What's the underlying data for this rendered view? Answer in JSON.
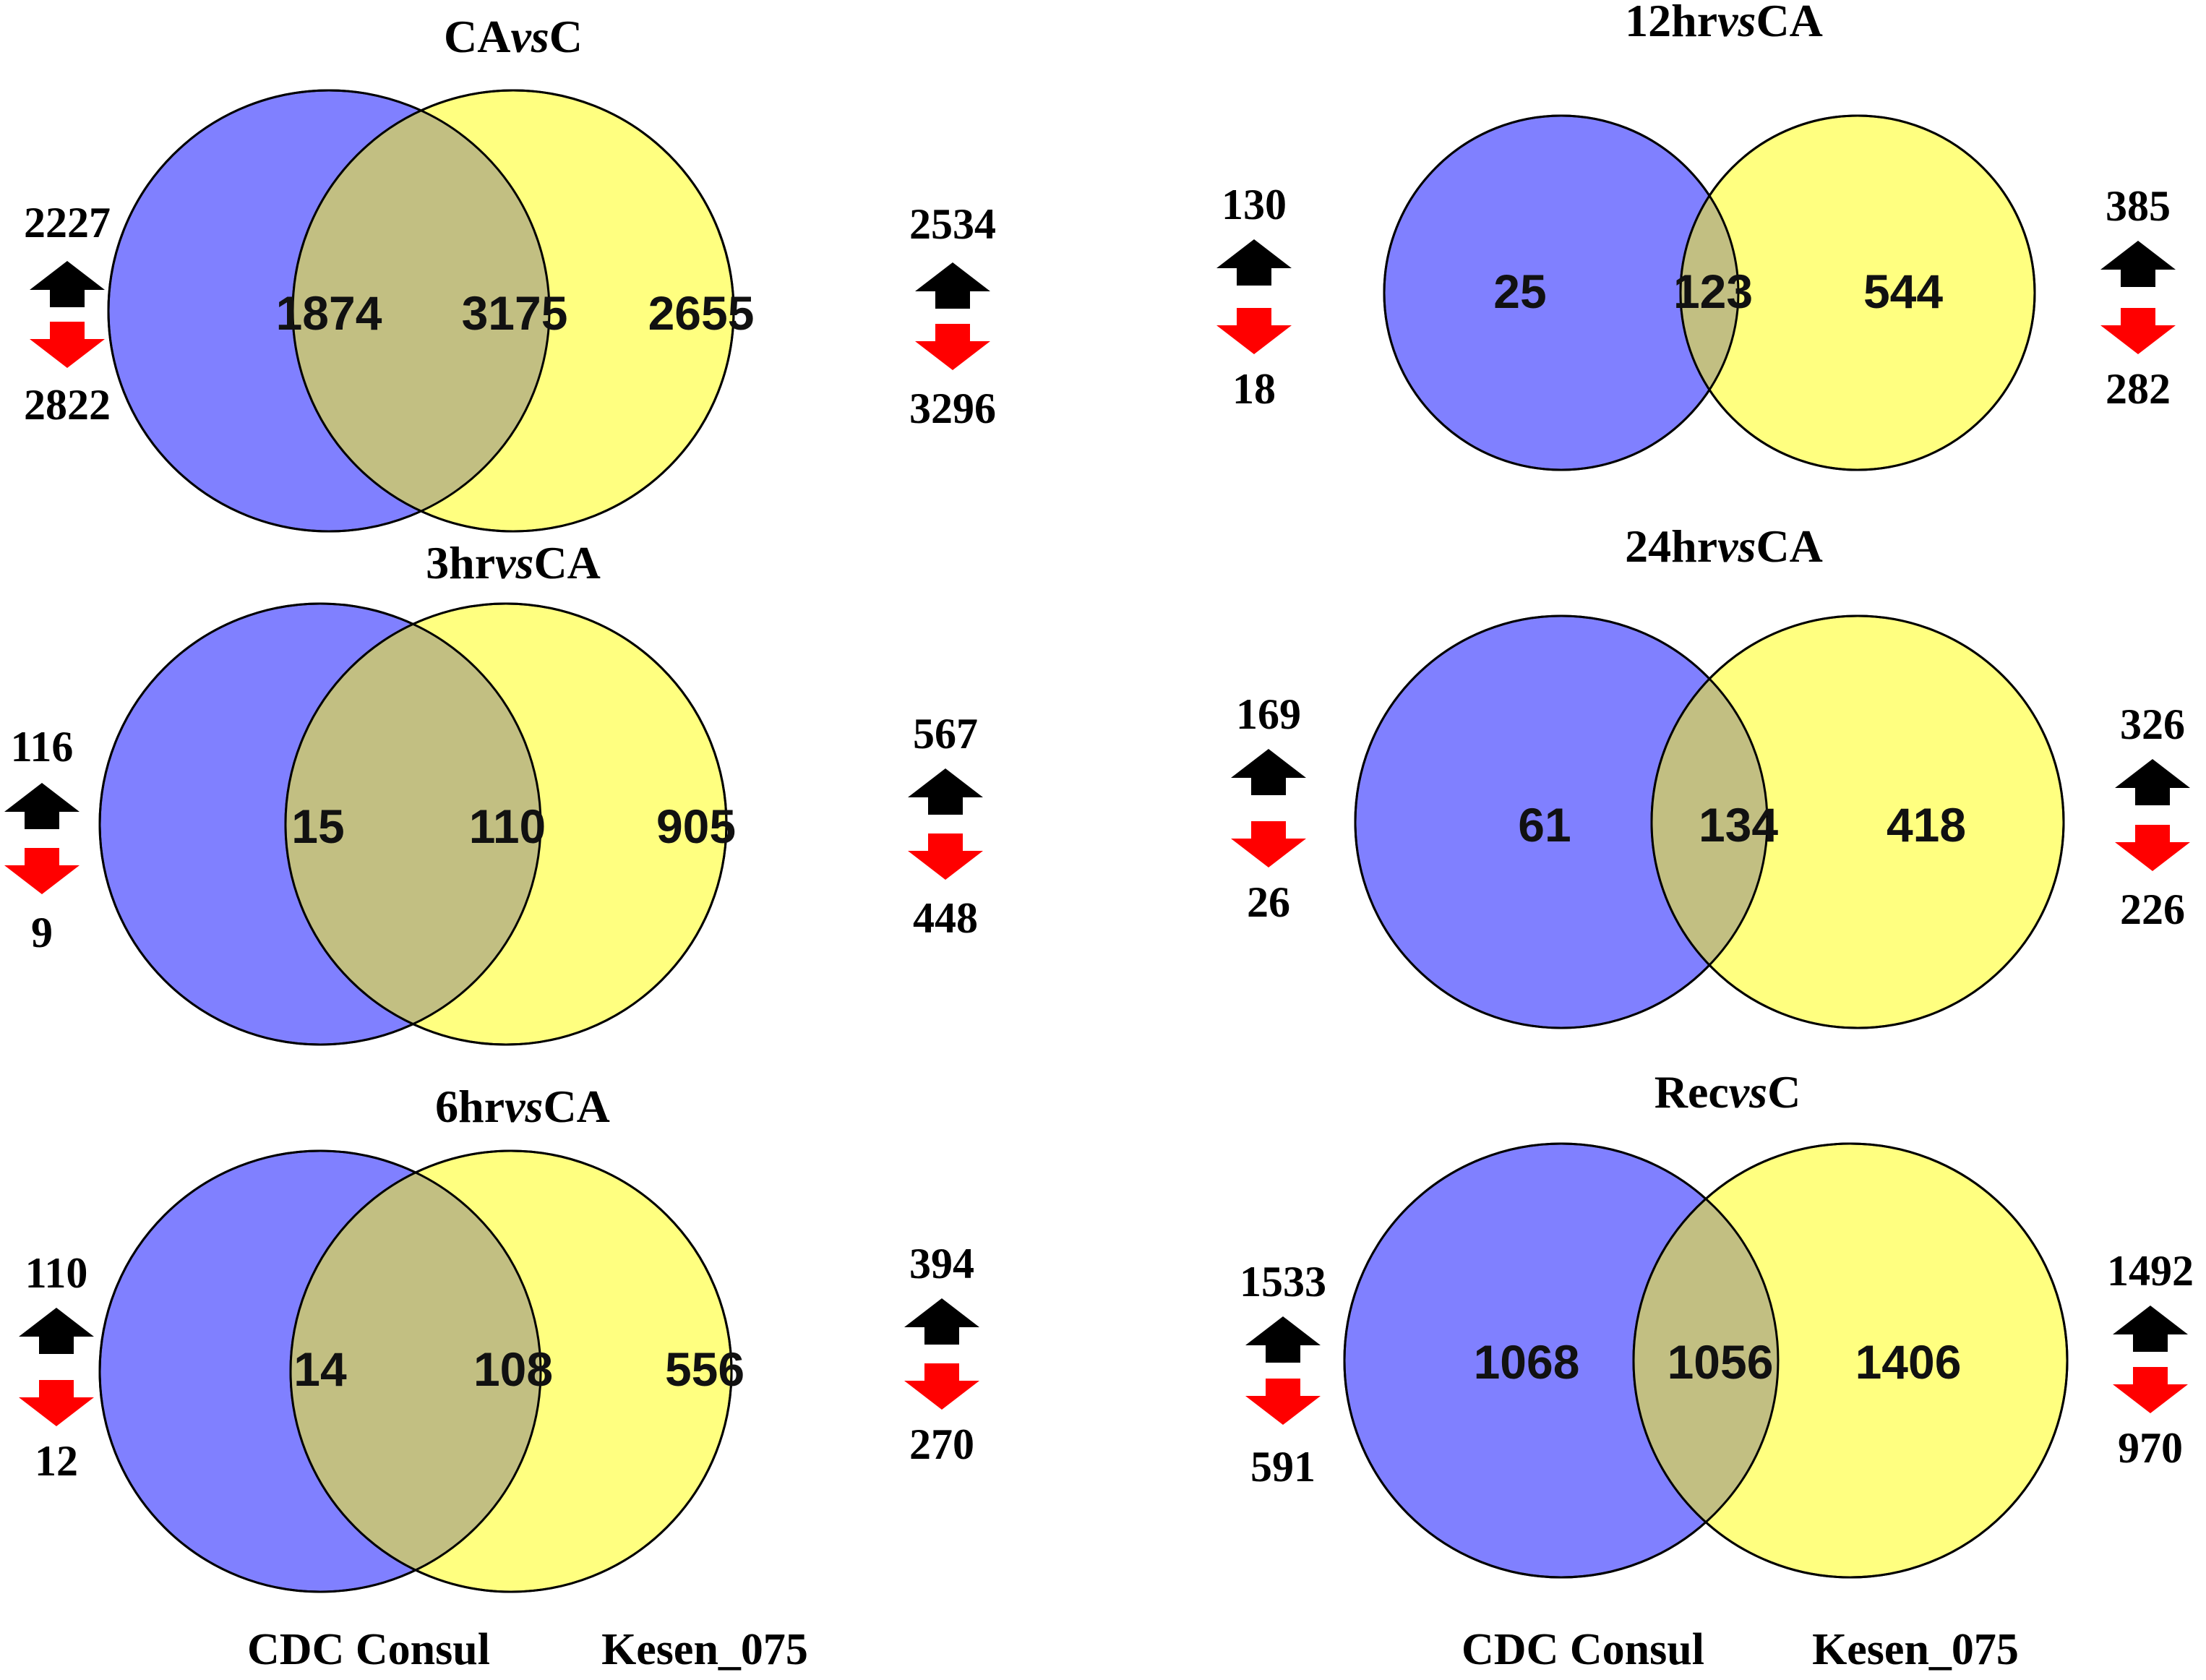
{
  "colors": {
    "set_a": "#8080ff",
    "set_b": "#ffff80",
    "overlap": "#c2bf82",
    "arrow_up": "#000000",
    "arrow_down": "#ff0000"
  },
  "legend": {
    "left_label": "CDC Consul",
    "right_label": "Kesen_075"
  },
  "panels": [
    {
      "title": {
        "prefix": "CA",
        "vs": "vs",
        "suffix": "C"
      },
      "left_only": "1874",
      "overlap": "3175",
      "right_only": "2655",
      "left_up": "2227",
      "left_down": "2822",
      "right_up": "2534",
      "right_down": "3296"
    },
    {
      "title": {
        "prefix": "12hr",
        "vs": "vs",
        "suffix": "CA"
      },
      "left_only": "25",
      "overlap": "123",
      "right_only": "544",
      "left_up": "130",
      "left_down": "18",
      "right_up": "385",
      "right_down": "282"
    },
    {
      "title": {
        "prefix": "3hr",
        "vs": "vs",
        "suffix": "CA"
      },
      "left_only": "15",
      "overlap": "110",
      "right_only": "905",
      "left_up": "116",
      "left_down": "9",
      "right_up": "567",
      "right_down": "448"
    },
    {
      "title": {
        "prefix": "24hr",
        "vs": "vs",
        "suffix": "CA"
      },
      "left_only": "61",
      "overlap": "134",
      "right_only": "418",
      "left_up": "169",
      "left_down": "26",
      "right_up": "326",
      "right_down": "226"
    },
    {
      "title": {
        "prefix": "6hr",
        "vs": "vs",
        "suffix": "CA"
      },
      "left_only": "14",
      "overlap": "108",
      "right_only": "556",
      "left_up": "110",
      "left_down": "12",
      "right_up": "394",
      "right_down": "270"
    },
    {
      "title": {
        "prefix": "Rec",
        "vs": "vs",
        "suffix": "C"
      },
      "left_only": "1068",
      "overlap": "1056",
      "right_only": "1406",
      "left_up": "1533",
      "left_down": "591",
      "right_up": "1492",
      "right_down": "970"
    }
  ]
}
